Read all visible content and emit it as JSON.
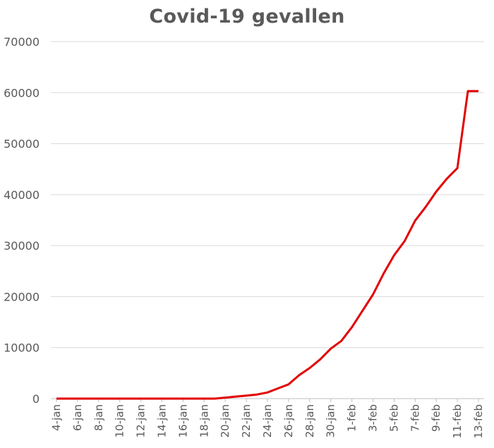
{
  "chart_data": {
    "type": "line",
    "title": "Covid-19 gevallen",
    "xlabel": "",
    "ylabel": "",
    "ylim": [
      0,
      70000
    ],
    "yticks": [
      0,
      10000,
      20000,
      30000,
      40000,
      50000,
      60000,
      70000
    ],
    "grid": true,
    "legend": "none",
    "line_color": "#e30000",
    "x": [
      "4-jan",
      "5-jan",
      "6-jan",
      "7-jan",
      "8-jan",
      "9-jan",
      "10-jan",
      "11-jan",
      "12-jan",
      "13-jan",
      "14-jan",
      "15-jan",
      "16-jan",
      "17-jan",
      "18-jan",
      "19-jan",
      "20-jan",
      "21-jan",
      "22-jan",
      "23-jan",
      "24-jan",
      "25-jan",
      "26-jan",
      "27-jan",
      "28-jan",
      "29-jan",
      "30-jan",
      "31-jan",
      "1-feb",
      "2-feb",
      "3-feb",
      "4-feb",
      "5-feb",
      "6-feb",
      "7-feb",
      "8-feb",
      "9-feb",
      "10-feb",
      "11-feb",
      "12-feb",
      "13-feb"
    ],
    "xtick_labels": [
      "4-jan",
      "6-jan",
      "8-jan",
      "10-jan",
      "12-jan",
      "14-jan",
      "16-jan",
      "18-jan",
      "20-jan",
      "22-jan",
      "24-jan",
      "26-jan",
      "28-jan",
      "30-jan",
      "1-feb",
      "3-feb",
      "5-feb",
      "7-feb",
      "9-feb",
      "11-feb",
      "13-feb"
    ],
    "series": [
      {
        "values": [
          0,
          0,
          0,
          0,
          0,
          0,
          0,
          0,
          0,
          0,
          0,
          0,
          0,
          0,
          0,
          0,
          200,
          400,
          600,
          800,
          1200,
          2000,
          2800,
          4600,
          6000,
          7700,
          9800,
          11300,
          14000,
          17200,
          20400,
          24500,
          28100,
          30900,
          34900,
          37600,
          40600,
          43100,
          45200,
          60300,
          60300
        ]
      }
    ]
  }
}
